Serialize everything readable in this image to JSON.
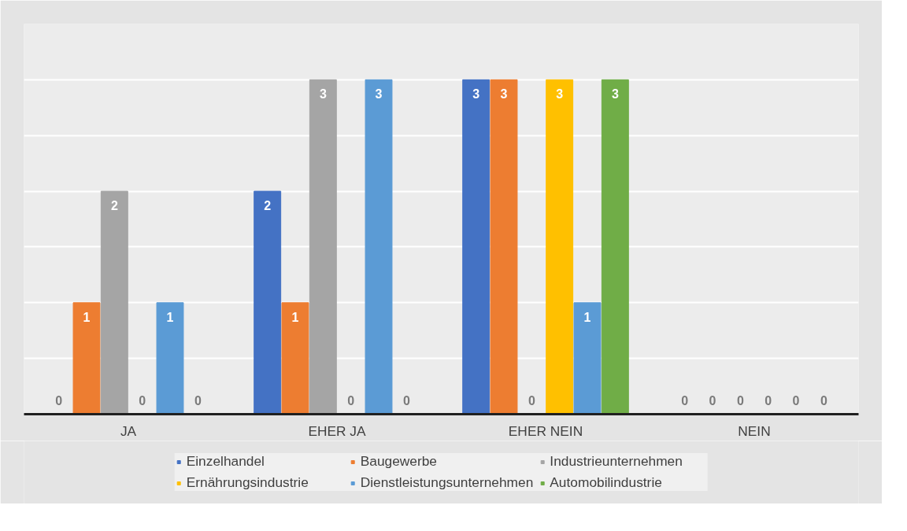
{
  "chart_data": {
    "type": "bar",
    "categories": [
      "JA",
      "EHER JA",
      "EHER NEIN",
      "NEIN"
    ],
    "series": [
      {
        "name": "Einzelhandel",
        "color": "#4472c4",
        "values": [
          0,
          2,
          3,
          0
        ]
      },
      {
        "name": "Baugewerbe",
        "color": "#ed7d31",
        "values": [
          1,
          1,
          3,
          0
        ]
      },
      {
        "name": "Industrieunternehmen",
        "color": "#a5a5a5",
        "values": [
          2,
          3,
          0,
          0
        ]
      },
      {
        "name": "Ernährungsindustrie",
        "color": "#ffc000",
        "values": [
          0,
          0,
          3,
          0
        ]
      },
      {
        "name": "Dienstleistungsunternehmen",
        "color": "#5b9bd5",
        "values": [
          1,
          3,
          1,
          0
        ]
      },
      {
        "name": "Automobilindustrie",
        "color": "#70ad47",
        "values": [
          0,
          0,
          3,
          0
        ]
      }
    ],
    "ylim": [
      0,
      3.5
    ],
    "yticks": [
      {
        "value": 0.5,
        "label": null
      },
      {
        "value": 1,
        "label": null
      },
      {
        "value": 1.5,
        "label": null
      },
      {
        "value": 2,
        "label": null
      },
      {
        "value": 2.5,
        "label": null
      },
      {
        "value": 3,
        "label": null
      },
      {
        "value": 3.5,
        "label": null
      }
    ],
    "grid": "y",
    "tick_labels": "x",
    "data_labels": true,
    "legend": "bottom"
  }
}
